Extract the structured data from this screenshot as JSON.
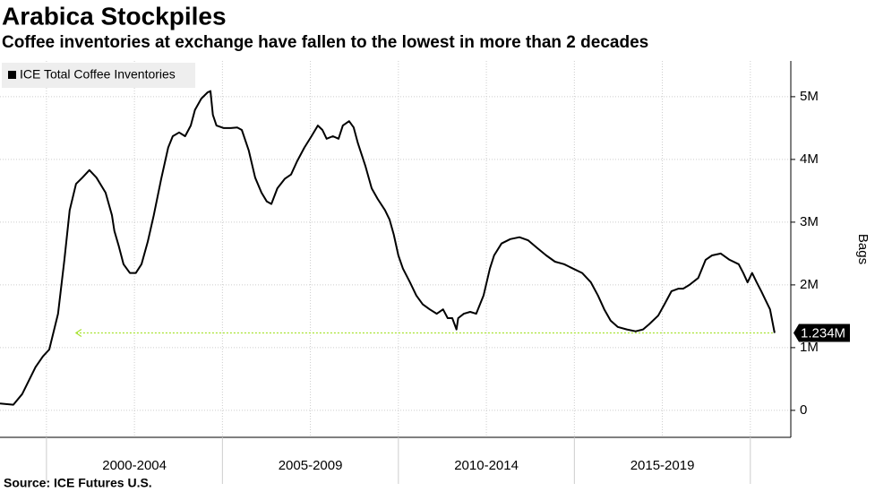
{
  "chart_data": {
    "type": "line",
    "title": "Arabica Stockpiles",
    "subtitle": "Coffee inventories at exchange have fallen to the lowest in more than 2 decades",
    "source": "Source: ICE Futures U.S.",
    "y_axis_label": "Bags",
    "period_labels": [
      "2000-2004",
      "2005-2009",
      "2010-2014",
      "2015-2019"
    ],
    "xlim": [
      1998.68,
      2021.15
    ],
    "xticks": [
      2000,
      2005,
      2010,
      2015,
      2020
    ],
    "xgrid": [
      2000,
      2002.5,
      2005,
      2007.5,
      2010,
      2012.5,
      2015,
      2017.5,
      2020
    ],
    "ylim": [
      -430000,
      5570000
    ],
    "yticks": [
      0,
      {
        "value": 1000000,
        "label": "1M"
      },
      {
        "value": 2000000,
        "label": "2M"
      },
      {
        "value": 3000000,
        "label": "3M"
      },
      {
        "value": 4000000,
        "label": "4M"
      },
      {
        "value": 5000000,
        "label": "5M"
      }
    ],
    "grid": true,
    "legend": "top-left",
    "x": [
      1998.68,
      1999.06,
      1999.31,
      1999.69,
      1999.9,
      2000.08,
      2000.33,
      2000.51,
      2000.66,
      2000.84,
      2001.02,
      2001.22,
      2001.42,
      2001.68,
      2001.86,
      2001.93,
      2002.06,
      2002.19,
      2002.37,
      2002.54,
      2002.7,
      2002.88,
      2003.05,
      2003.26,
      2003.46,
      2003.59,
      2003.77,
      2003.94,
      2004.1,
      2004.22,
      2004.4,
      2004.58,
      2004.66,
      2004.73,
      2004.83,
      2005.04,
      2005.24,
      2005.42,
      2005.55,
      2005.75,
      2005.93,
      2006.11,
      2006.26,
      2006.39,
      2006.56,
      2006.77,
      2006.95,
      2007.12,
      2007.33,
      2007.53,
      2007.71,
      2007.84,
      2007.96,
      2008.14,
      2008.3,
      2008.42,
      2008.6,
      2008.73,
      2008.85,
      2009.06,
      2009.24,
      2009.41,
      2009.62,
      2009.75,
      2009.87,
      2010.0,
      2010.13,
      2010.33,
      2010.51,
      2010.69,
      2010.89,
      2011.09,
      2011.27,
      2011.4,
      2011.53,
      2011.65,
      2011.7,
      2011.86,
      2012.04,
      2012.21,
      2012.42,
      2012.6,
      2012.72,
      2012.93,
      2013.18,
      2013.44,
      2013.69,
      2013.94,
      2014.2,
      2014.45,
      2014.71,
      2014.96,
      2015.22,
      2015.47,
      2015.67,
      2015.85,
      2016.03,
      2016.23,
      2016.49,
      2016.74,
      2016.95,
      2017.12,
      2017.38,
      2017.56,
      2017.76,
      2017.96,
      2018.09,
      2018.27,
      2018.52,
      2018.73,
      2018.91,
      2019.16,
      2019.41,
      2019.67,
      2019.8,
      2019.92,
      2020.05,
      2020.18,
      2020.31,
      2020.43,
      2020.56,
      2020.69
    ],
    "series": [
      {
        "name": "ICE Total Coffee Inventories",
        "color": "#000000",
        "values": [
          110000,
          90000,
          260000,
          690000,
          860000,
          970000,
          1540000,
          2400000,
          3190000,
          3610000,
          3710000,
          3830000,
          3710000,
          3470000,
          3110000,
          2860000,
          2610000,
          2330000,
          2190000,
          2190000,
          2330000,
          2690000,
          3110000,
          3690000,
          4190000,
          4370000,
          4430000,
          4370000,
          4540000,
          4790000,
          4970000,
          5070000,
          5090000,
          4710000,
          4540000,
          4500000,
          4500000,
          4510000,
          4470000,
          4140000,
          3710000,
          3470000,
          3330000,
          3290000,
          3540000,
          3690000,
          3760000,
          3970000,
          4190000,
          4370000,
          4540000,
          4470000,
          4330000,
          4370000,
          4330000,
          4540000,
          4610000,
          4510000,
          4260000,
          3900000,
          3540000,
          3370000,
          3190000,
          3040000,
          2800000,
          2470000,
          2260000,
          2040000,
          1830000,
          1690000,
          1610000,
          1540000,
          1610000,
          1470000,
          1470000,
          1290000,
          1470000,
          1540000,
          1570000,
          1540000,
          1830000,
          2260000,
          2470000,
          2660000,
          2730000,
          2760000,
          2710000,
          2590000,
          2470000,
          2370000,
          2330000,
          2260000,
          2190000,
          2040000,
          1830000,
          1610000,
          1430000,
          1330000,
          1290000,
          1260000,
          1290000,
          1370000,
          1510000,
          1690000,
          1900000,
          1940000,
          1940000,
          2000000,
          2110000,
          2400000,
          2470000,
          2500000,
          2400000,
          2330000,
          2190000,
          2040000,
          2190000,
          2040000,
          1900000,
          1760000,
          1610000,
          1234000
        ]
      }
    ],
    "annotation": {
      "value": 1234000,
      "label": "1.234M",
      "color": "#a6e22e",
      "x_start": 2000.84
    }
  }
}
